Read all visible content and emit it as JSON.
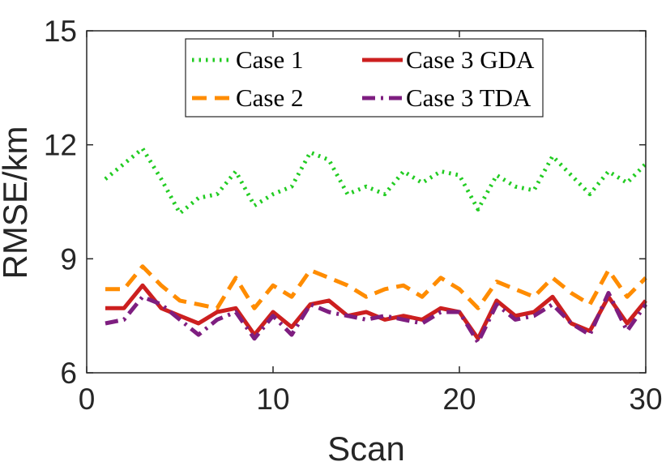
{
  "chart_data": {
    "type": "line",
    "xlabel": "Scan",
    "ylabel": "RMSE/km",
    "xlim": [
      0,
      30
    ],
    "ylim": [
      6,
      15
    ],
    "xticks": [
      0,
      10,
      20,
      30
    ],
    "yticks": [
      6,
      9,
      12,
      15
    ],
    "xtick_labels": [
      "0",
      "10",
      "20",
      "30"
    ],
    "ytick_labels": [
      "6",
      "9",
      "12",
      "15"
    ],
    "grid": false,
    "legend_position": "top-center",
    "x": [
      1,
      2,
      3,
      4,
      5,
      6,
      7,
      8,
      9,
      10,
      11,
      12,
      13,
      14,
      15,
      16,
      17,
      18,
      19,
      20,
      21,
      22,
      23,
      24,
      25,
      26,
      27,
      28,
      29,
      30
    ],
    "series": [
      {
        "name": "Case 1",
        "color": "#22cc22",
        "style": "dotted",
        "values": [
          11.1,
          11.5,
          11.9,
          11.1,
          10.2,
          10.6,
          10.7,
          11.3,
          10.4,
          10.7,
          10.9,
          11.8,
          11.6,
          10.7,
          10.9,
          10.7,
          11.3,
          11.0,
          11.3,
          11.2,
          10.3,
          11.2,
          10.9,
          10.8,
          11.7,
          11.2,
          10.7,
          11.3,
          11.0,
          11.5
        ]
      },
      {
        "name": "Case 2",
        "color": "#ff8c00",
        "style": "dashed",
        "values": [
          8.2,
          8.2,
          8.8,
          8.3,
          7.9,
          7.8,
          7.7,
          8.5,
          7.7,
          8.3,
          8.0,
          8.7,
          8.5,
          8.3,
          8.0,
          8.2,
          8.3,
          8.0,
          8.5,
          8.2,
          7.7,
          8.4,
          8.2,
          8.0,
          8.5,
          8.1,
          7.8,
          8.7,
          8.0,
          8.5
        ]
      },
      {
        "name": "Case 3 GDA",
        "color": "#cc1f1f",
        "style": "solid",
        "values": [
          7.7,
          7.7,
          8.3,
          7.7,
          7.5,
          7.3,
          7.6,
          7.7,
          7.0,
          7.6,
          7.2,
          7.8,
          7.9,
          7.5,
          7.6,
          7.4,
          7.5,
          7.4,
          7.7,
          7.6,
          6.9,
          7.9,
          7.5,
          7.6,
          8.0,
          7.3,
          7.1,
          8.0,
          7.3,
          7.9
        ]
      },
      {
        "name": "Case 3 TDA",
        "color": "#7e1e80",
        "style": "dashdot",
        "values": [
          7.3,
          7.4,
          8.0,
          7.8,
          7.4,
          7.0,
          7.4,
          7.6,
          6.9,
          7.5,
          7.0,
          7.8,
          7.6,
          7.5,
          7.4,
          7.5,
          7.4,
          7.3,
          7.6,
          7.6,
          6.8,
          7.8,
          7.4,
          7.5,
          7.8,
          7.3,
          7.0,
          8.1,
          7.1,
          7.8
        ]
      }
    ]
  }
}
